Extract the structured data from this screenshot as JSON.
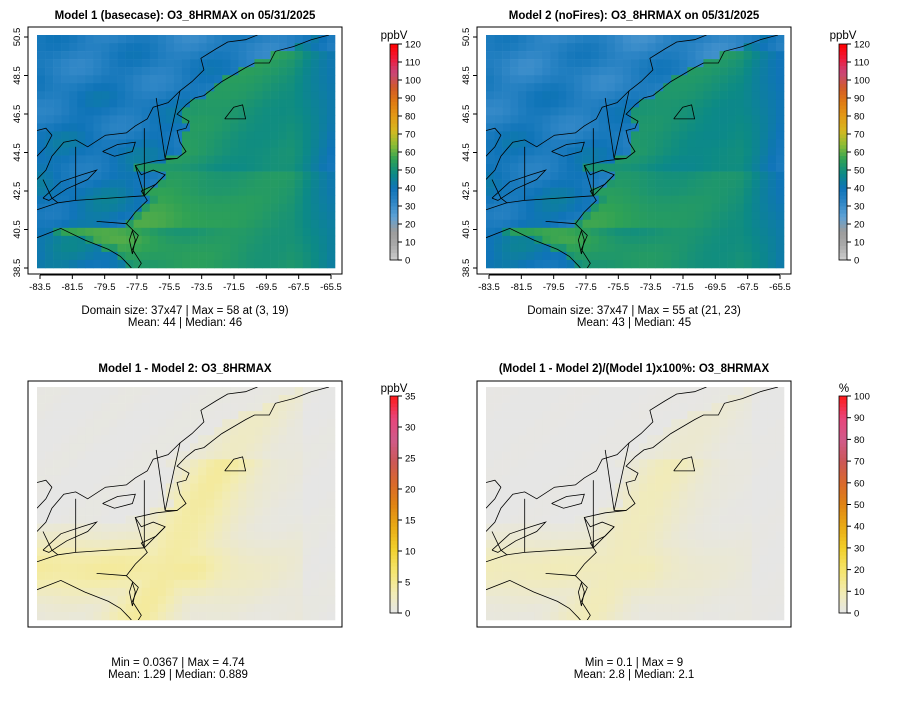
{
  "chart_data": [
    {
      "type": "heatmap",
      "title": "Model 1 (basecase): O3_8HRMAX on 05/31/2025",
      "variable": "O3_8HRMAX",
      "date": "05/31/2025",
      "x_ticks": [
        "-83.5",
        "-81.5",
        "-79.5",
        "-77.5",
        "-75.5",
        "-73.5",
        "-71.5",
        "-69.5",
        "-67.5",
        "-65.5"
      ],
      "y_ticks": [
        "38.5",
        "40.5",
        "42.5",
        "44.5",
        "46.5",
        "48.5",
        "50.5"
      ],
      "colorbar": {
        "unit": "ppbV",
        "ticks": [
          "0",
          "10",
          "20",
          "30",
          "40",
          "50",
          "60",
          "70",
          "80",
          "90",
          "100",
          "110",
          "120"
        ],
        "range": [
          0,
          120
        ],
        "palette": "concentration"
      },
      "field": "concentration",
      "stats_line1": "Domain size: 37x47 | Max = 58 at (3, 19)",
      "stats_line2": "Mean: 44 |  Median: 46",
      "stats": {
        "domain": "37x47",
        "max": 58,
        "max_at": "(3, 19)",
        "mean": 44,
        "median": 46
      }
    },
    {
      "type": "heatmap",
      "title": "Model 2 (noFires): O3_8HRMAX on 05/31/2025",
      "variable": "O3_8HRMAX",
      "date": "05/31/2025",
      "x_ticks": [
        "-83.5",
        "-81.5",
        "-79.5",
        "-77.5",
        "-75.5",
        "-73.5",
        "-71.5",
        "-69.5",
        "-67.5",
        "-65.5"
      ],
      "y_ticks": [
        "38.5",
        "40.5",
        "42.5",
        "44.5",
        "46.5",
        "48.5",
        "50.5"
      ],
      "colorbar": {
        "unit": "ppbV",
        "ticks": [
          "0",
          "10",
          "20",
          "30",
          "40",
          "50",
          "60",
          "70",
          "80",
          "90",
          "100",
          "110",
          "120"
        ],
        "range": [
          0,
          120
        ],
        "palette": "concentration"
      },
      "field": "concentration",
      "field_offset": -1.5,
      "stats_line1": "Domain size: 37x47 | Max = 55 at (21, 23)",
      "stats_line2": "Mean: 43 |  Median: 45",
      "stats": {
        "domain": "37x47",
        "max": 55,
        "max_at": "(21, 23)",
        "mean": 43,
        "median": 45
      }
    },
    {
      "type": "heatmap",
      "title": "Model 1 - Model 2: O3_8HRMAX",
      "variable": "O3_8HRMAX",
      "x_ticks": [],
      "y_ticks": [],
      "colorbar": {
        "unit": "ppbV",
        "ticks": [
          "0",
          "5",
          "10",
          "15",
          "20",
          "25",
          "30",
          "35"
        ],
        "range": [
          0,
          35
        ],
        "palette": "difference"
      },
      "field": "difference",
      "stats_line1": "Min = 0.0367 | Max = 4.74",
      "stats_line2": "Mean: 1.29 |  Median: 0.889",
      "stats": {
        "min": 0.0367,
        "max": 4.74,
        "mean": 1.29,
        "median": 0.889
      }
    },
    {
      "type": "heatmap",
      "title": "(Model 1 - Model 2)/(Model 1)x100%: O3_8HRMAX",
      "variable": "O3_8HRMAX",
      "x_ticks": [],
      "y_ticks": [],
      "colorbar": {
        "unit": "%",
        "ticks": [
          "0",
          "10",
          "20",
          "30",
          "40",
          "50",
          "60",
          "70",
          "80",
          "90",
          "100"
        ],
        "range": [
          0,
          100
        ],
        "palette": "difference"
      },
      "field": "percent",
      "stats_line1": "Min = 0.1 | Max = 9",
      "stats_line2": "Mean: 2.8 |  Median: 2.1",
      "stats": {
        "min": 0.1,
        "max": 9,
        "mean": 2.8,
        "median": 2.1
      }
    }
  ],
  "palettes": {
    "concentration": [
      "#cfcfcf",
      "#aaaaaa",
      "#9c9c9c",
      "#5fa2d6",
      "#2f86c6",
      "#0f74b8",
      "#0c8a86",
      "#2fa255",
      "#8cbc35",
      "#d6b820",
      "#e39a16",
      "#e07a13",
      "#d15a2a",
      "#c8467a",
      "#f01a3a",
      "#ff0000"
    ],
    "difference": [
      "#e6e6e6",
      "#f3ecb0",
      "#f5e46a",
      "#f2cf2a",
      "#e9aa14",
      "#e08414",
      "#d9692c",
      "#cc5858",
      "#d05a8a",
      "#e8457a",
      "#ff1a1a"
    ]
  },
  "map_outline_color": "#000000"
}
